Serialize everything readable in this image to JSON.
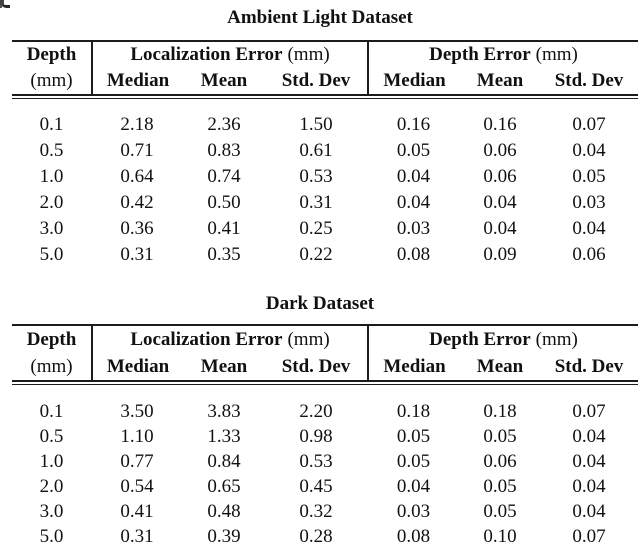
{
  "tables": [
    {
      "title": "Ambient Light Dataset",
      "depth_header": "Depth",
      "depth_unit": "(mm)",
      "group1_title": "Localization Error",
      "group1_unit": "(mm)",
      "group2_title": "Depth Error",
      "group2_unit": "(mm)",
      "sub_median1": "Median",
      "sub_mean1": "Mean",
      "sub_std1": "Std. Dev",
      "sub_median2": "Median",
      "sub_mean2": "Mean",
      "sub_std2": "Std. Dev",
      "rows": [
        {
          "depth": "0.1",
          "c1": "2.18",
          "c2": "2.36",
          "c3": "1.50",
          "c4": "0.16",
          "c5": "0.16",
          "c6": "0.07"
        },
        {
          "depth": "0.5",
          "c1": "0.71",
          "c2": "0.83",
          "c3": "0.61",
          "c4": "0.05",
          "c5": "0.06",
          "c6": "0.04"
        },
        {
          "depth": "1.0",
          "c1": "0.64",
          "c2": "0.74",
          "c3": "0.53",
          "c4": "0.04",
          "c5": "0.06",
          "c6": "0.05"
        },
        {
          "depth": "2.0",
          "c1": "0.42",
          "c2": "0.50",
          "c3": "0.31",
          "c4": "0.04",
          "c5": "0.04",
          "c6": "0.03"
        },
        {
          "depth": "3.0",
          "c1": "0.36",
          "c2": "0.41",
          "c3": "0.25",
          "c4": "0.03",
          "c5": "0.04",
          "c6": "0.04"
        },
        {
          "depth": "5.0",
          "c1": "0.31",
          "c2": "0.35",
          "c3": "0.22",
          "c4": "0.08",
          "c5": "0.09",
          "c6": "0.06"
        }
      ]
    },
    {
      "title": "Dark Dataset",
      "depth_header": "Depth",
      "depth_unit": "(mm)",
      "group1_title": "Localization Error",
      "group1_unit": "(mm)",
      "group2_title": "Depth Error",
      "group2_unit": "(mm)",
      "sub_median1": "Median",
      "sub_mean1": "Mean",
      "sub_std1": "Std. Dev",
      "sub_median2": "Median",
      "sub_mean2": "Mean",
      "sub_std2": "Std. Dev",
      "rows": [
        {
          "depth": "0.1",
          "c1": "3.50",
          "c2": "3.83",
          "c3": "2.20",
          "c4": "0.18",
          "c5": "0.18",
          "c6": "0.07"
        },
        {
          "depth": "0.5",
          "c1": "1.10",
          "c2": "1.33",
          "c3": "0.98",
          "c4": "0.05",
          "c5": "0.05",
          "c6": "0.04"
        },
        {
          "depth": "1.0",
          "c1": "0.77",
          "c2": "0.84",
          "c3": "0.53",
          "c4": "0.05",
          "c5": "0.06",
          "c6": "0.04"
        },
        {
          "depth": "2.0",
          "c1": "0.54",
          "c2": "0.65",
          "c3": "0.45",
          "c4": "0.04",
          "c5": "0.05",
          "c6": "0.04"
        },
        {
          "depth": "3.0",
          "c1": "0.41",
          "c2": "0.48",
          "c3": "0.32",
          "c4": "0.03",
          "c5": "0.05",
          "c6": "0.04"
        },
        {
          "depth": "5.0",
          "c1": "0.31",
          "c2": "0.39",
          "c3": "0.28",
          "c4": "0.08",
          "c5": "0.10",
          "c6": "0.07"
        }
      ]
    }
  ]
}
